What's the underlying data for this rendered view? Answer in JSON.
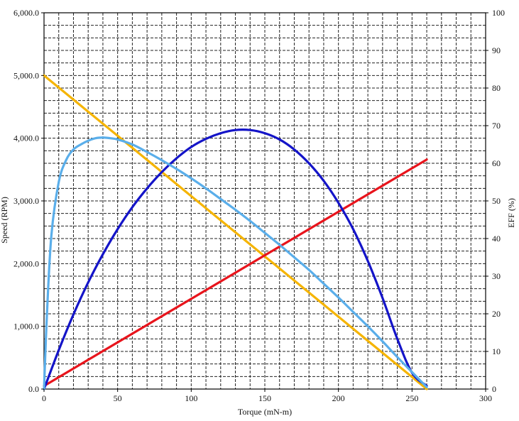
{
  "chart_data": {
    "type": "line",
    "title": "",
    "xlabel": "Torque (mN-m)",
    "ylabel_left": "Speed (RPM)",
    "ylabel_right": "EFF (%)",
    "xlim": [
      0,
      300
    ],
    "ylim_left": [
      0,
      6000
    ],
    "ylim_right": [
      0,
      100
    ],
    "x_ticks": [
      "0",
      "50",
      "100",
      "150",
      "200",
      "250",
      "300"
    ],
    "y_left_ticks": [
      "0.0",
      "1,000.0",
      "2,000.0",
      "3,000.0",
      "4,000.0",
      "5,000.0",
      "6,000.0"
    ],
    "y_right_ticks": [
      "0",
      "10",
      "20",
      "30",
      "40",
      "50",
      "60",
      "70",
      "80",
      "90",
      "100"
    ],
    "grid": true,
    "legend": "none",
    "series": [
      {
        "color": "#f5b400",
        "axis": "left",
        "x": [
          0,
          260
        ],
        "y": [
          5000,
          0
        ]
      },
      {
        "color": "#e8141c",
        "axis": "left",
        "x": [
          0,
          260
        ],
        "y": [
          50,
          3660
        ]
      },
      {
        "color": "#1414c8",
        "axis": "left",
        "x": [
          0,
          10,
          20,
          30,
          40,
          50,
          60,
          70,
          80,
          90,
          100,
          110,
          120,
          130,
          140,
          150,
          160,
          170,
          180,
          190,
          200,
          210,
          220,
          230,
          240,
          250,
          260
        ],
        "y": [
          0,
          620,
          1190,
          1700,
          2150,
          2550,
          2900,
          3200,
          3460,
          3680,
          3860,
          3990,
          4080,
          4130,
          4130,
          4080,
          3980,
          3820,
          3600,
          3320,
          2970,
          2550,
          2040,
          1450,
          800,
          260,
          50
        ]
      },
      {
        "color": "#5aaeea",
        "axis": "left",
        "x": [
          0,
          2,
          5,
          10,
          15,
          20,
          25,
          30,
          35,
          40,
          45,
          50,
          60,
          70,
          80,
          90,
          100,
          110,
          120,
          130,
          140,
          150,
          160,
          170,
          180,
          190,
          200,
          210,
          220,
          230,
          240,
          250,
          260
        ],
        "y": [
          0,
          1200,
          2450,
          3300,
          3650,
          3820,
          3900,
          3960,
          4000,
          4010,
          4000,
          3980,
          3900,
          3780,
          3650,
          3510,
          3360,
          3200,
          3030,
          2860,
          2680,
          2490,
          2300,
          2100,
          1900,
          1680,
          1460,
          1230,
          1000,
          760,
          510,
          270,
          30
        ]
      }
    ]
  }
}
